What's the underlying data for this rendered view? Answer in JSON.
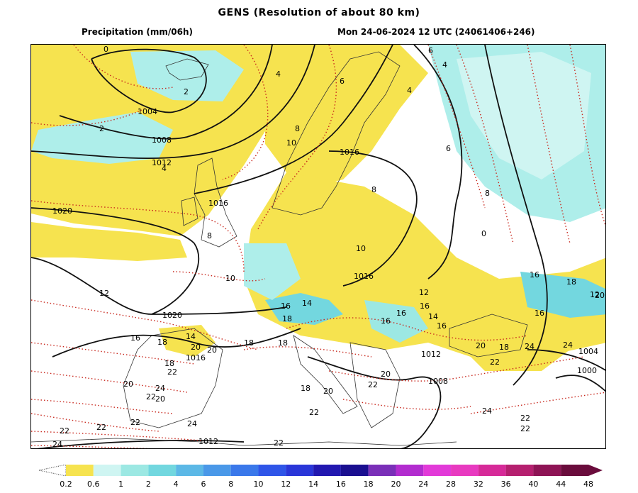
{
  "header": {
    "title": "GENS (Resolution of about 80 km)",
    "variable": "Precipitation (mm/06h)",
    "valid_time": "Mon 24-06-2024 12 UTC (24061406+246)"
  },
  "isobars": [
    {
      "label": "1004"
    },
    {
      "label": "1008"
    },
    {
      "label": "1012"
    },
    {
      "label": "1016"
    },
    {
      "label": "1016"
    },
    {
      "label": "1016"
    },
    {
      "label": "1020"
    },
    {
      "label": "1020"
    },
    {
      "label": "1016"
    },
    {
      "label": "1012"
    },
    {
      "label": "1008"
    },
    {
      "label": "1012"
    },
    {
      "label": "1004"
    },
    {
      "label": "1000"
    }
  ],
  "isotherms": [
    {
      "label": "0"
    },
    {
      "label": "2"
    },
    {
      "label": "2"
    },
    {
      "label": "4"
    },
    {
      "label": "4"
    },
    {
      "label": "4"
    },
    {
      "label": "6"
    },
    {
      "label": "6"
    },
    {
      "label": "6"
    },
    {
      "label": "4"
    },
    {
      "label": "8"
    },
    {
      "label": "10"
    },
    {
      "label": "8"
    },
    {
      "label": "8"
    },
    {
      "label": "8"
    },
    {
      "label": "0"
    },
    {
      "label": "10"
    },
    {
      "label": "10"
    },
    {
      "label": "12"
    },
    {
      "label": "12"
    },
    {
      "label": "14"
    },
    {
      "label": "16"
    },
    {
      "label": "18"
    },
    {
      "label": "16"
    },
    {
      "label": "16"
    },
    {
      "label": "16"
    },
    {
      "label": "14"
    },
    {
      "label": "16"
    },
    {
      "label": "18"
    },
    {
      "label": "16"
    },
    {
      "label": "20"
    },
    {
      "label": "16"
    },
    {
      "label": "18"
    },
    {
      "label": "14"
    },
    {
      "label": "20"
    },
    {
      "label": "18"
    },
    {
      "label": "20"
    },
    {
      "label": "18"
    },
    {
      "label": "16"
    },
    {
      "label": "20"
    },
    {
      "label": "18"
    },
    {
      "label": "24"
    },
    {
      "label": "24"
    },
    {
      "label": "22"
    },
    {
      "label": "22"
    },
    {
      "label": "24"
    },
    {
      "label": "22"
    },
    {
      "label": "20"
    },
    {
      "label": "20"
    },
    {
      "label": "22"
    },
    {
      "label": "18"
    },
    {
      "label": "20"
    },
    {
      "label": "22"
    },
    {
      "label": "24"
    },
    {
      "label": "22"
    },
    {
      "label": "22"
    },
    {
      "label": "22"
    },
    {
      "label": "22"
    },
    {
      "label": "24"
    },
    {
      "label": "22"
    },
    {
      "label": "24"
    },
    {
      "label": "22"
    },
    {
      "label": "12"
    },
    {
      "label": "20"
    },
    {
      "label": "18"
    }
  ],
  "legend": {
    "values": [
      "0.2",
      "0.6",
      "1",
      "2",
      "4",
      "6",
      "8",
      "10",
      "12",
      "14",
      "16",
      "18",
      "20",
      "24",
      "28",
      "32",
      "36",
      "40",
      "44",
      "48"
    ],
    "colors": [
      "#ffffff",
      "#f6e34f",
      "#cff5f2",
      "#9ce8e3",
      "#72d7df",
      "#5cb8e6",
      "#4a98e8",
      "#3a78ea",
      "#2f55e8",
      "#2a36d8",
      "#2218b0",
      "#1a0f90",
      "#7a2fb8",
      "#b22ccf",
      "#e23ad8",
      "#e83ac0",
      "#d62a98",
      "#b5206f",
      "#8e1455",
      "#6a0c3c"
    ]
  },
  "colors": {
    "precip_light": "#f6e34f",
    "precip_cyan": "#aeeeea",
    "precip_mid": "#73d7df",
    "isobar": "#111111",
    "isotherm": "#c8281e",
    "coast": "#333333"
  }
}
